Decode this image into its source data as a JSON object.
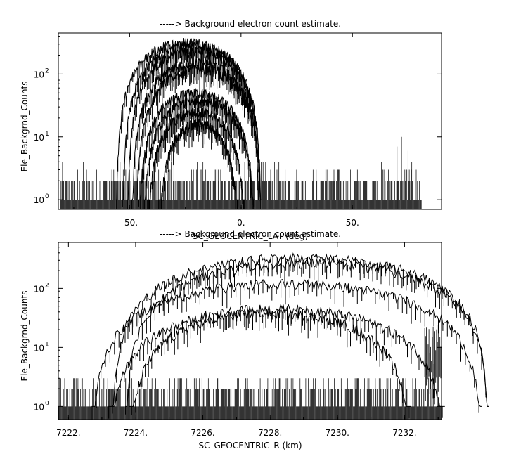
{
  "chart_data": [
    {
      "type": "line",
      "title": "-----> Background electron count estimate.",
      "xlabel": "SC_GEOCENTRIC_LAT (deg)",
      "ylabel": "Ele_Backgrnd_Counts",
      "xlim": [
        -82,
        90
      ],
      "ylim": [
        0.7,
        450
      ],
      "yscale": "log",
      "grid": false,
      "x_ticks": [
        {
          "value": -50,
          "label": "-50."
        },
        {
          "value": 0,
          "label": "0."
        },
        {
          "value": 50,
          "label": "50."
        }
      ],
      "y_ticks": [
        {
          "value": 1,
          "label": "10",
          "exp": "0"
        },
        {
          "value": 10,
          "label": "10",
          "exp": "1"
        },
        {
          "value": 100,
          "label": "10",
          "exp": "2"
        }
      ],
      "noise_floor": {
        "x_range": [
          -81,
          81
        ],
        "levels": [
          1,
          2,
          3,
          4
        ]
      },
      "series": [
        {
          "center": -24,
          "half_width": 32,
          "peak": 320
        },
        {
          "center": -22,
          "half_width": 31,
          "peak": 280
        },
        {
          "center": -21,
          "half_width": 30,
          "peak": 230
        },
        {
          "center": -20,
          "half_width": 29,
          "peak": 150
        },
        {
          "center": -19,
          "half_width": 28,
          "peak": 120
        },
        {
          "center": -20,
          "half_width": 26,
          "peak": 50
        },
        {
          "center": -19,
          "half_width": 25,
          "peak": 38
        },
        {
          "center": -20,
          "half_width": 22,
          "peak": 25
        },
        {
          "center": -19,
          "half_width": 18,
          "peak": 16
        }
      ],
      "spikes": [
        {
          "x": 72,
          "y": 10
        },
        {
          "x": 70,
          "y": 7
        },
        {
          "x": 75,
          "y": 6
        }
      ]
    },
    {
      "type": "line",
      "title": "-----> Background electron count estimate.",
      "xlabel": "SC_GEOCENTRIC_R (km)",
      "ylabel": "Ele_Backgrnd_Counts",
      "xlim": [
        7221.7,
        7233.1
      ],
      "ylim": [
        0.6,
        600
      ],
      "yscale": "log",
      "grid": false,
      "x_ticks": [
        {
          "value": 7222,
          "label": "7222."
        },
        {
          "value": 7224,
          "label": "7224."
        },
        {
          "value": 7226,
          "label": "7226."
        },
        {
          "value": 7228,
          "label": "7228."
        },
        {
          "value": 7230,
          "label": "7230."
        },
        {
          "value": 7232,
          "label": "7232."
        }
      ],
      "y_ticks": [
        {
          "value": 1,
          "label": "10",
          "exp": "0"
        },
        {
          "value": 10,
          "label": "10",
          "exp": "1"
        },
        {
          "value": 100,
          "label": "10",
          "exp": "2"
        }
      ],
      "noise_floor": {
        "x_range": [
          7221.7,
          7233.1
        ],
        "levels": [
          1,
          2,
          3
        ]
      },
      "series": [
        {
          "center": 7228.9,
          "half_width": 5.6,
          "peak": 330
        },
        {
          "center": 7229.1,
          "half_width": 5.4,
          "peak": 270
        },
        {
          "center": 7228.5,
          "half_width": 5.8,
          "peak": 120
        },
        {
          "center": 7228.2,
          "half_width": 5.0,
          "peak": 45
        },
        {
          "center": 7228.0,
          "half_width": 4.2,
          "peak": 38
        }
      ],
      "right_edge": {
        "x_from": 7232.6,
        "x_to": 7233.1,
        "y_from": 5,
        "y_to": 25
      }
    }
  ]
}
